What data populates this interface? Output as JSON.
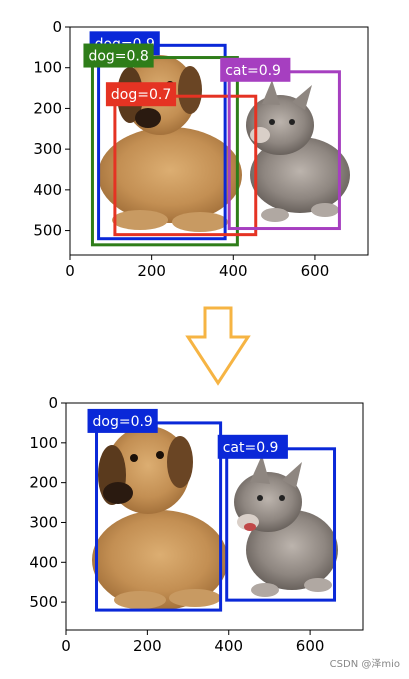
{
  "chart_data": [
    {
      "type": "scatter",
      "xlim": [
        0,
        730
      ],
      "ylim": [
        560,
        0
      ],
      "xticks": [
        "0",
        "200",
        "400",
        "600"
      ],
      "yticks": [
        "0",
        "100",
        "200",
        "300",
        "400",
        "500"
      ],
      "boxes": [
        {
          "label": "dog=0.9",
          "color": "#0a28d8",
          "x0": 70,
          "y0": 45,
          "x1": 380,
          "y1": 520
        },
        {
          "label": "dog=0.8",
          "color": "#2e7d19",
          "x0": 55,
          "y0": 75,
          "x1": 410,
          "y1": 535
        },
        {
          "label": "dog=0.7",
          "color": "#e53323",
          "x0": 110,
          "y0": 170,
          "x1": 455,
          "y1": 510
        },
        {
          "label": "cat=0.9",
          "color": "#a63fc0",
          "x0": 390,
          "y0": 110,
          "x1": 660,
          "y1": 495
        }
      ]
    },
    {
      "type": "scatter",
      "xlim": [
        0,
        730
      ],
      "ylim": [
        570,
        0
      ],
      "xticks": [
        "0",
        "200",
        "400",
        "600"
      ],
      "yticks": [
        "0",
        "100",
        "200",
        "300",
        "400",
        "500"
      ],
      "boxes": [
        {
          "label": "dog=0.9",
          "color": "#0a28d8",
          "x0": 75,
          "y0": 50,
          "x1": 380,
          "y1": 520
        },
        {
          "label": "cat=0.9",
          "color": "#0a28d8",
          "x0": 395,
          "y0": 115,
          "x1": 660,
          "y1": 495
        }
      ]
    }
  ],
  "arrow_color": "#f6b443",
  "watermark": "CSDN @泽mio"
}
